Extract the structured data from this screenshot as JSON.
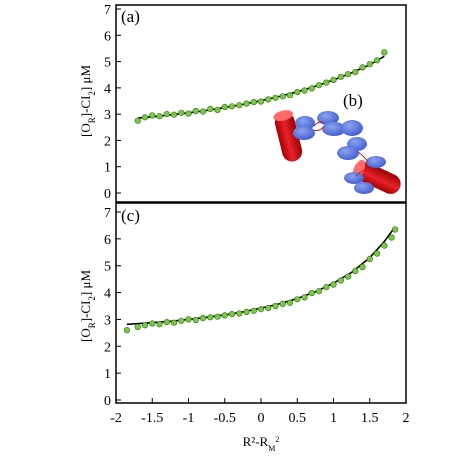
{
  "chart_data": [
    {
      "type": "scatter",
      "panel_label": "(a)",
      "inset_label": "(b)",
      "ylabel": "[O<sub>R</sub>]-CI<sub>2</sub>] μM",
      "xlim": [
        -2,
        2
      ],
      "ylim": [
        0,
        7
      ],
      "yticks": [
        0,
        1,
        2,
        3,
        4,
        5,
        6,
        7
      ],
      "grid": false,
      "point_color": "#7ac943",
      "line_color": "#000000",
      "fit_line": {
        "x": [
          -1.7,
          -1.5,
          -1.25,
          -1.0,
          -0.75,
          -0.5,
          -0.25,
          0.0,
          0.25,
          0.5,
          0.75,
          1.0,
          1.25,
          1.5,
          1.7
        ],
        "y": [
          2.85,
          2.9,
          2.97,
          3.05,
          3.14,
          3.25,
          3.37,
          3.51,
          3.67,
          3.85,
          4.06,
          4.3,
          4.57,
          4.88,
          5.2
        ]
      },
      "points": {
        "x": [
          -1.7,
          -1.6,
          -1.5,
          -1.4,
          -1.3,
          -1.2,
          -1.1,
          -1.0,
          -0.9,
          -0.8,
          -0.7,
          -0.6,
          -0.5,
          -0.4,
          -0.3,
          -0.2,
          -0.1,
          0.0,
          0.1,
          0.2,
          0.3,
          0.4,
          0.5,
          0.6,
          0.7,
          0.8,
          0.9,
          1.0,
          1.1,
          1.2,
          1.3,
          1.4,
          1.5,
          1.6,
          1.7
        ],
        "y": [
          2.75,
          2.88,
          2.95,
          2.92,
          3.0,
          2.98,
          3.05,
          3.02,
          3.12,
          3.1,
          3.2,
          3.16,
          3.27,
          3.3,
          3.34,
          3.4,
          3.46,
          3.48,
          3.56,
          3.62,
          3.68,
          3.72,
          3.84,
          3.9,
          3.98,
          4.1,
          4.2,
          4.3,
          4.42,
          4.52,
          4.6,
          4.78,
          4.9,
          5.05,
          5.35
        ]
      }
    },
    {
      "type": "scatter",
      "panel_label": "(c)",
      "xlabel": "R²-R_M²",
      "ylabel": "[O<sub>R</sub>]-CI<sub>2</sub>] μM",
      "xlim": [
        -2,
        2
      ],
      "ylim": [
        0,
        7
      ],
      "xticks": [
        -2,
        -1.5,
        -1,
        -0.5,
        0,
        0.5,
        1,
        1.5,
        2
      ],
      "xtick_labels": [
        "-2",
        "-1.5",
        "-1",
        "-0.5",
        "0",
        "0.5",
        "1",
        "1.5",
        "2"
      ],
      "yticks": [
        0,
        1,
        2,
        3,
        4,
        5,
        6,
        7
      ],
      "grid": false,
      "point_color": "#7ac943",
      "line_color": "#000000",
      "fit_line": {
        "x": [
          -1.85,
          -1.5,
          -1.25,
          -1.0,
          -0.75,
          -0.5,
          -0.25,
          0.0,
          0.25,
          0.5,
          0.75,
          1.0,
          1.25,
          1.5,
          1.7,
          1.85
        ],
        "y": [
          2.82,
          2.88,
          2.93,
          3.0,
          3.08,
          3.17,
          3.28,
          3.42,
          3.58,
          3.78,
          4.03,
          4.35,
          4.75,
          5.3,
          5.9,
          6.45
        ]
      },
      "points": {
        "x": [
          -1.85,
          -1.7,
          -1.6,
          -1.5,
          -1.4,
          -1.3,
          -1.2,
          -1.1,
          -1.0,
          -0.9,
          -0.8,
          -0.7,
          -0.6,
          -0.5,
          -0.4,
          -0.3,
          -0.2,
          -0.1,
          0.0,
          0.1,
          0.2,
          0.3,
          0.4,
          0.5,
          0.6,
          0.7,
          0.8,
          0.9,
          1.0,
          1.1,
          1.2,
          1.3,
          1.4,
          1.5,
          1.6,
          1.7,
          1.8,
          1.85
        ],
        "y": [
          2.6,
          2.72,
          2.78,
          2.85,
          2.82,
          2.9,
          2.88,
          2.95,
          3.0,
          2.98,
          3.05,
          3.08,
          3.1,
          3.15,
          3.2,
          3.22,
          3.28,
          3.32,
          3.38,
          3.42,
          3.5,
          3.58,
          3.62,
          3.75,
          3.82,
          3.98,
          4.05,
          4.2,
          4.3,
          4.45,
          4.6,
          4.8,
          4.95,
          5.25,
          5.45,
          5.75,
          6.05,
          6.35
        ]
      }
    }
  ]
}
